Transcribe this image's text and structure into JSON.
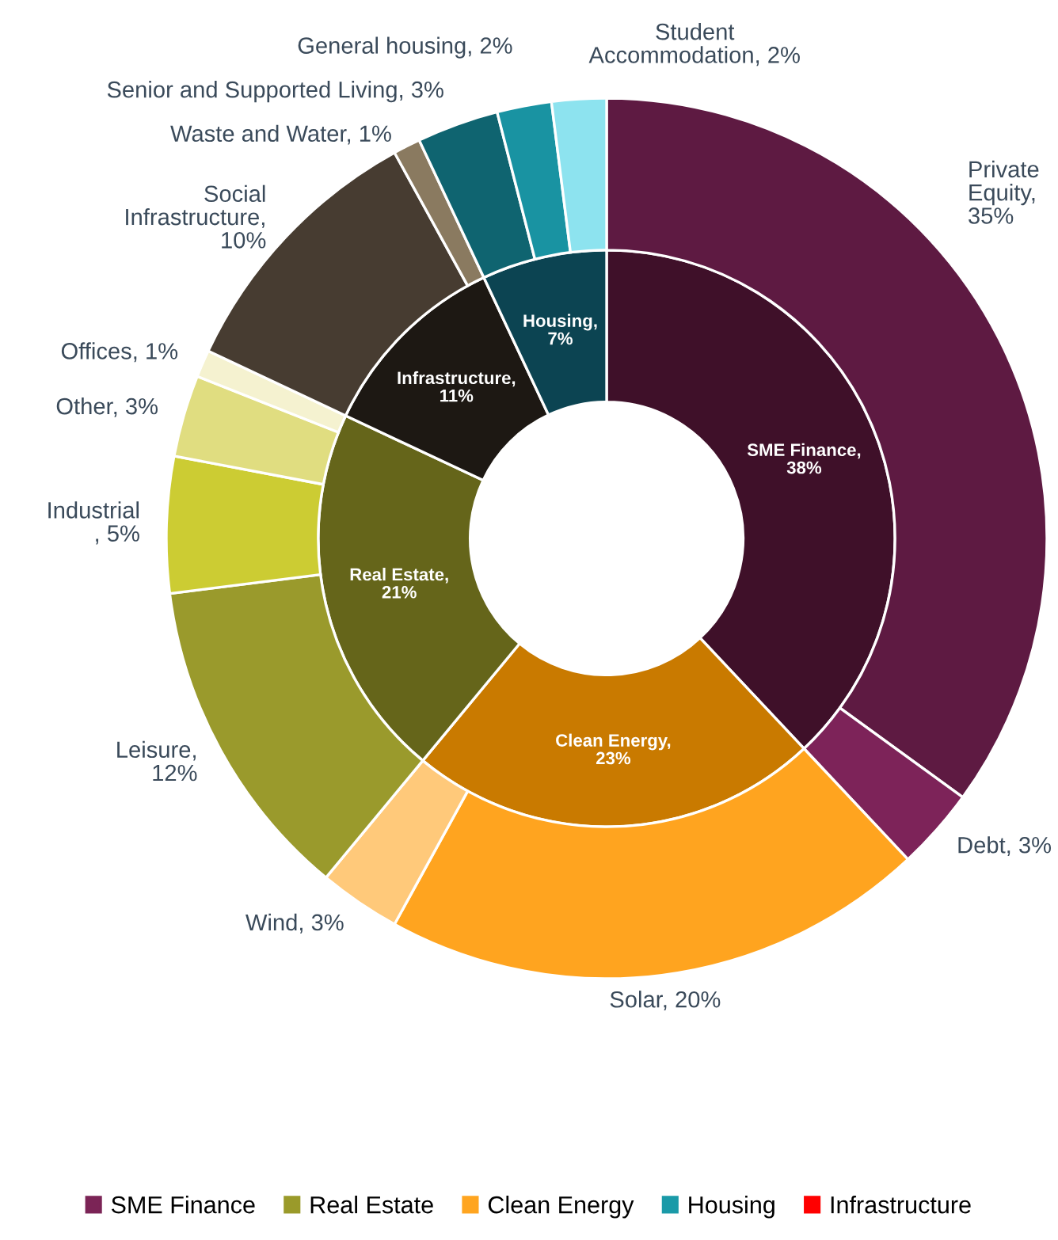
{
  "chart_data": [
    {
      "type": "donut",
      "series": [
        {
          "values": [
            38,
            23,
            21,
            11,
            7
          ],
          "colors": [
            "#3f1029",
            "#c97a00",
            "#65651a",
            "#1d1813",
            "#0c4452"
          ],
          "value_labels": [
            "SME Finance,\n38%",
            "Clean Energy,\n23%",
            "Real Estate,\n21%",
            "Infrastructure,\n11%",
            "Housing,\n7%"
          ]
        },
        {
          "values": [
            35,
            3,
            20,
            3,
            12,
            5,
            3,
            1,
            10,
            1,
            3,
            2,
            2
          ],
          "colors": [
            "#5e1a42",
            "#7d2359",
            "#ffa41f",
            "#ffc97a",
            "#9a9a2c",
            "#cccc33",
            "#e0dd80",
            "#f5f2d0",
            "#473c31",
            "#8a7a60",
            "#0f6470",
            "#1993a2",
            "#8de3ef"
          ],
          "value_labels": [
            "Private\nEquity,\n35%",
            "Debt, 3%",
            "Solar, 20%",
            "Wind, 3%",
            "Leisure,\n12%",
            "Industrial\n, 5%",
            "Other, 3%",
            "Offices, 1%",
            "Social\nInfrastructure,\n10%",
            "Waste and Water, 1%",
            "Senior and Supported Living, 3%",
            "General housing, 2%",
            "Student\nAccommodation, 2%"
          ]
        }
      ]
    },
    {
      "type": "other",
      "categories": [
        "SME Finance",
        "Real Estate",
        "Clean Energy",
        "Housing",
        "Infrastructure"
      ],
      "colors": [
        "#7b2456",
        "#9a9a2a",
        "#ffa520",
        "#1a9aa8",
        "#ff0000"
      ]
    }
  ]
}
